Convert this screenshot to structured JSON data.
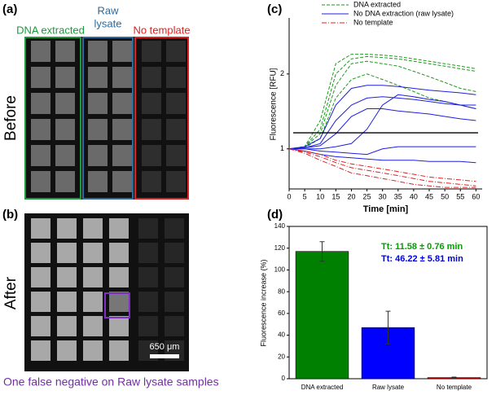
{
  "panels": {
    "a": {
      "label": "(a)",
      "side": "Before",
      "groups": [
        {
          "label": "DNA extracted",
          "color": "#1a9a3a"
        },
        {
          "label_lines": [
            "Raw",
            "lysate"
          ],
          "color": "#2b6a9e"
        },
        {
          "label": "No template",
          "color": "#e02020"
        }
      ]
    },
    "b": {
      "label": "(b)",
      "side": "After",
      "scale": "650 μm",
      "caption": "One false negative on Raw lysate samples",
      "caption_color": "#7030a0"
    }
  },
  "chart_data": [
    {
      "type": "line",
      "label": "(c)",
      "xlabel": "Time [min]",
      "ylabel": "Fluorescence [RFU]",
      "log_scale": true,
      "x": [
        0,
        5,
        10,
        15,
        20,
        25,
        30,
        35,
        40,
        45,
        50,
        55,
        60
      ],
      "xlim": [
        0,
        62
      ],
      "xticks": [
        0,
        5,
        10,
        15,
        20,
        25,
        30,
        35,
        40,
        45,
        50,
        55,
        60
      ],
      "ylim": [
        0.69,
        3.36
      ],
      "yticks": [
        1,
        2
      ],
      "threshold": 1.16,
      "series": [
        {
          "name": "DNA extracted",
          "color": "#1a9a1a",
          "dash": "4,2",
          "curves": [
            [
              1,
              1.02,
              1.3,
              2.2,
              2.4,
              2.4,
              2.38,
              2.35,
              2.3,
              2.25,
              2.2,
              2.15,
              2.1
            ],
            [
              1,
              1.02,
              1.2,
              2.0,
              2.3,
              2.35,
              2.33,
              2.3,
              2.25,
              2.2,
              2.15,
              2.1,
              2.05
            ],
            [
              1,
              1.02,
              1.15,
              1.8,
              2.2,
              2.25,
              2.2,
              2.15,
              2.05,
              1.95,
              1.85,
              1.75,
              1.7
            ],
            [
              1,
              1.01,
              1.1,
              1.6,
              1.9,
              2.0,
              1.9,
              1.8,
              1.7,
              1.6,
              1.55,
              1.5,
              1.45
            ]
          ]
        },
        {
          "name": "No DNA extraction (raw lysate)",
          "color": "#1f1fe0",
          "dash": "",
          "curves": [
            [
              1,
              1.02,
              1.1,
              1.5,
              1.75,
              1.8,
              1.8,
              1.78,
              1.75,
              1.72,
              1.7,
              1.68,
              1.65
            ],
            [
              1,
              1.01,
              1.05,
              1.3,
              1.5,
              1.6,
              1.62,
              1.6,
              1.58,
              1.55,
              1.52,
              1.5,
              1.5
            ],
            [
              1,
              1.01,
              1.03,
              1.15,
              1.35,
              1.45,
              1.45,
              1.42,
              1.4,
              1.38,
              1.35,
              1.32,
              1.3
            ],
            [
              1,
              1.0,
              1.0,
              1.02,
              1.05,
              1.2,
              1.5,
              1.65,
              1.62,
              1.58,
              1.55,
              1.5,
              1.45
            ],
            [
              1,
              1.0,
              0.98,
              0.97,
              0.96,
              0.95,
              1.0,
              1.02,
              1.02,
              1.02,
              1.02,
              1.02,
              1.02
            ],
            [
              1,
              0.98,
              0.95,
              0.93,
              0.92,
              0.91,
              0.9,
              0.9,
              0.9,
              0.89,
              0.89,
              0.89,
              0.88
            ]
          ]
        },
        {
          "name": "No template",
          "color": "#e02020",
          "dash": "6,2,1,2",
          "curves": [
            [
              1,
              0.97,
              0.93,
              0.88,
              0.84,
              0.82,
              0.8,
              0.78,
              0.76,
              0.74,
              0.73,
              0.72,
              0.71
            ],
            [
              1,
              0.96,
              0.9,
              0.85,
              0.8,
              0.78,
              0.76,
              0.74,
              0.72,
              0.71,
              0.7,
              0.7,
              0.7
            ],
            [
              1,
              0.98,
              0.95,
              0.9,
              0.87,
              0.85,
              0.83,
              0.81,
              0.79,
              0.77,
              0.76,
              0.75,
              0.74
            ]
          ]
        }
      ]
    },
    {
      "type": "bar",
      "label": "(d)",
      "ylabel": "Fluorescence increase (%)",
      "categories": [
        "DNA extracted",
        "Raw lysate",
        "No template"
      ],
      "values": [
        117,
        47,
        1
      ],
      "errors": [
        9,
        15,
        0.5
      ],
      "colors": [
        "#008000",
        "#0000ff",
        "#cc0000"
      ],
      "ylim": [
        0,
        140
      ],
      "yticks": [
        0,
        20,
        40,
        60,
        80,
        100,
        120,
        140
      ],
      "annotations": [
        {
          "text": "Tt:  11.58 ± 0.76 min",
          "color": "#00a000"
        },
        {
          "text": "Tt:  46.22 ± 5.81 min",
          "color": "#0000dd"
        }
      ]
    }
  ]
}
